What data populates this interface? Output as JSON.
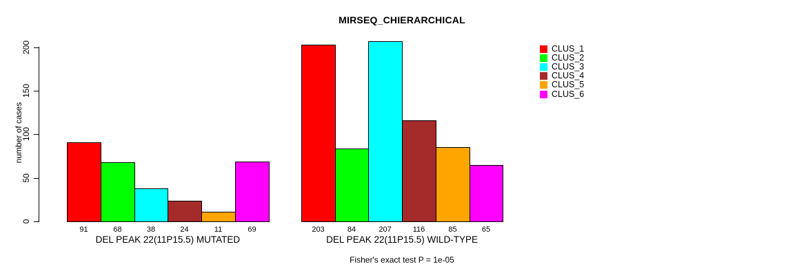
{
  "chart_data": {
    "type": "bar",
    "title": "MIRSEQ_CHIERARCHICAL",
    "ylabel": "number of cases",
    "ylim": [
      0,
      200
    ],
    "yticks": [
      0,
      50,
      100,
      150,
      200
    ],
    "grid": false,
    "legend_position": "right",
    "legend": [
      {
        "label": "CLUS_1",
        "color": "#ff0000"
      },
      {
        "label": "CLUS_2",
        "color": "#00ff00"
      },
      {
        "label": "CLUS_3",
        "color": "#00ffff"
      },
      {
        "label": "CLUS_4",
        "color": "#a52a2a"
      },
      {
        "label": "CLUS_5",
        "color": "#ffa500"
      },
      {
        "label": "CLUS_6",
        "color": "#ff00ff"
      }
    ],
    "groups": [
      {
        "label": "DEL PEAK 22(11P15.5) MUTATED",
        "values": [
          91,
          68,
          38,
          24,
          11,
          69
        ]
      },
      {
        "label": "DEL PEAK 22(11P15.5) WILD-TYPE",
        "values": [
          203,
          84,
          207,
          116,
          85,
          65
        ]
      }
    ],
    "annotation": "Fisher's exact test P = 1e-05",
    "bar_border_color": "#000000",
    "background_color": "#ffffff"
  }
}
